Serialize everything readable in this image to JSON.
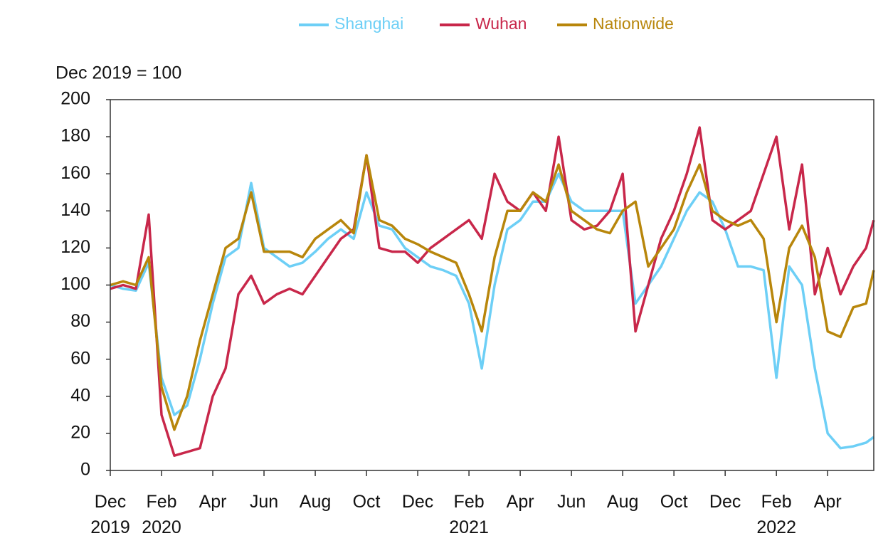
{
  "chart_data": {
    "type": "line",
    "y_label": "Dec 2019 = 100",
    "x": [
      0,
      0.5,
      1,
      1.5,
      2,
      2.5,
      3,
      3.5,
      4,
      4.5,
      5,
      5.5,
      6,
      6.5,
      7,
      7.5,
      8,
      8.5,
      9,
      9.5,
      10,
      10.5,
      11,
      11.5,
      12,
      12.5,
      13,
      13.5,
      14,
      14.5,
      15,
      15.5,
      16,
      16.5,
      17,
      17.5,
      18,
      18.5,
      19,
      19.5,
      20,
      20.5,
      21,
      21.5,
      22,
      22.5,
      23,
      23.5,
      24,
      24.5,
      25,
      25.5,
      26,
      26.5,
      27,
      27.5,
      28,
      28.5,
      29,
      29.5,
      29.8
    ],
    "series": [
      {
        "name": "Shanghai",
        "color": "#6dcff6",
        "values": [
          100,
          98,
          97,
          112,
          50,
          30,
          35,
          60,
          90,
          115,
          120,
          155,
          120,
          115,
          110,
          112,
          118,
          125,
          130,
          125,
          150,
          132,
          130,
          120,
          115,
          110,
          108,
          105,
          90,
          55,
          100,
          130,
          135,
          145,
          145,
          160,
          145,
          140,
          140,
          140,
          140,
          90,
          100,
          110,
          125,
          140,
          150,
          145,
          130,
          110,
          110,
          108,
          50,
          110,
          100,
          55,
          20,
          12,
          13,
          15,
          18
        ]
      },
      {
        "name": "Wuhan",
        "color": "#c8274a",
        "values": [
          98,
          100,
          98,
          138,
          30,
          8,
          10,
          12,
          40,
          55,
          95,
          105,
          90,
          95,
          98,
          95,
          105,
          115,
          125,
          130,
          170,
          120,
          118,
          118,
          112,
          120,
          125,
          130,
          135,
          125,
          160,
          145,
          140,
          150,
          140,
          180,
          135,
          130,
          132,
          140,
          160,
          75,
          100,
          125,
          140,
          160,
          185,
          135,
          130,
          135,
          140,
          160,
          180,
          130,
          165,
          95,
          120,
          95,
          110,
          120,
          135
        ]
      },
      {
        "name": "Nationwide",
        "color": "#b8860b",
        "values": [
          100,
          102,
          100,
          115,
          45,
          22,
          40,
          70,
          95,
          120,
          125,
          150,
          118,
          118,
          118,
          115,
          125,
          130,
          135,
          128,
          170,
          135,
          132,
          125,
          122,
          118,
          115,
          112,
          95,
          75,
          115,
          140,
          140,
          150,
          145,
          165,
          140,
          135,
          130,
          128,
          140,
          145,
          110,
          120,
          130,
          150,
          165,
          140,
          135,
          132,
          135,
          125,
          80,
          120,
          132,
          115,
          75,
          72,
          88,
          90,
          108
        ]
      }
    ],
    "xlim": [
      0,
      29.8
    ],
    "xticks": [
      {
        "value": 0,
        "label": "Dec 2019"
      },
      {
        "value": 2,
        "label": "Feb 2020"
      },
      {
        "value": 4,
        "label": "Apr"
      },
      {
        "value": 6,
        "label": "Jun"
      },
      {
        "value": 8,
        "label": "Aug"
      },
      {
        "value": 10,
        "label": "Oct"
      },
      {
        "value": 12,
        "label": "Dec"
      },
      {
        "value": 14,
        "label": "Feb 2021"
      },
      {
        "value": 16,
        "label": "Apr"
      },
      {
        "value": 18,
        "label": "Jun"
      },
      {
        "value": 20,
        "label": "Aug"
      },
      {
        "value": 22,
        "label": "Oct"
      },
      {
        "value": 24,
        "label": "Dec"
      },
      {
        "value": 26,
        "label": "Feb 2022"
      },
      {
        "value": 28,
        "label": "Apr"
      }
    ],
    "ylim": [
      0,
      200
    ],
    "yticks": [
      0,
      20,
      40,
      60,
      80,
      100,
      120,
      140,
      160,
      180,
      200
    ],
    "grid": false,
    "legend": "top"
  }
}
